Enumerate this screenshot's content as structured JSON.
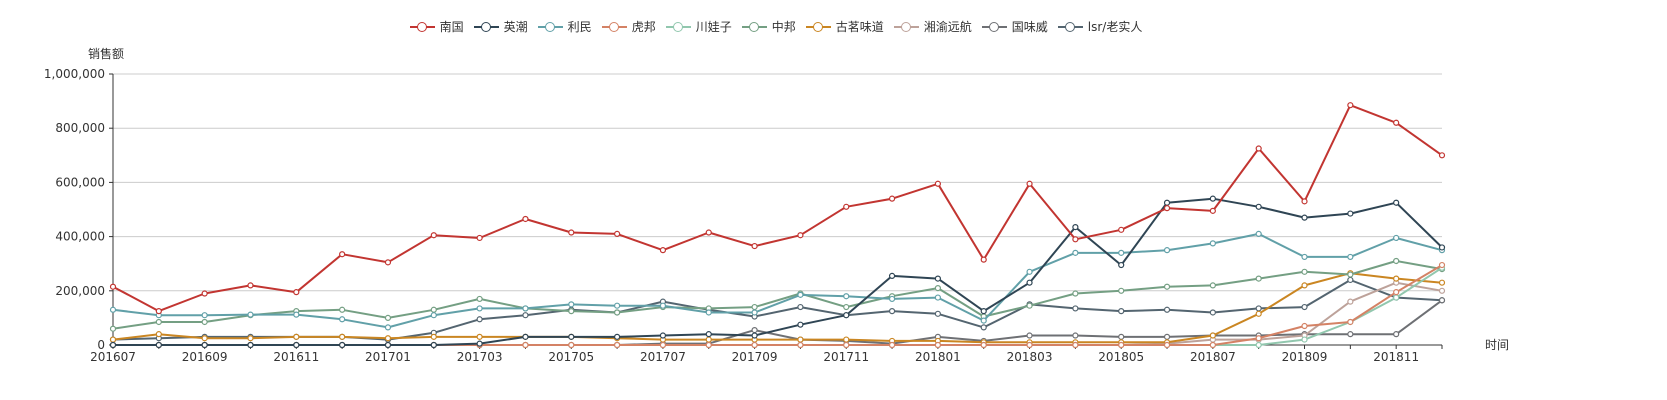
{
  "chart_data": {
    "type": "line",
    "title": "",
    "xlabel": "时间",
    "ylabel": "销售额",
    "ylim": [
      0,
      1000000
    ],
    "y_ticks": [
      "0",
      "200,000",
      "400,000",
      "600,000",
      "800,000",
      "1,000,000"
    ],
    "x_tick_labels": [
      "201607",
      "201609",
      "201611",
      "201701",
      "201703",
      "201705",
      "201707",
      "201709",
      "201711",
      "201801",
      "201803",
      "201805",
      "201807",
      "201809",
      "201811"
    ],
    "grid": true,
    "legend_position": "top",
    "categories": [
      "201607",
      "201608",
      "201609",
      "201610",
      "201611",
      "201612",
      "201701",
      "201702",
      "201703",
      "201704",
      "201705",
      "201706",
      "201707",
      "201708",
      "201709",
      "201710",
      "201711",
      "201712",
      "201801",
      "201802",
      "201803",
      "201804",
      "201805",
      "201806",
      "201807",
      "201808",
      "201809",
      "201810",
      "201811",
      "201812"
    ],
    "series": [
      {
        "name": "南国",
        "color": "#c23531",
        "values": [
          215000,
          125000,
          190000,
          220000,
          195000,
          335000,
          305000,
          405000,
          395000,
          465000,
          415000,
          410000,
          350000,
          415000,
          365000,
          405000,
          510000,
          540000,
          595000,
          315000,
          595000,
          390000,
          425000,
          505000,
          495000,
          725000,
          530000,
          885000,
          820000,
          700000
        ]
      },
      {
        "name": "英潮",
        "color": "#2f4554",
        "values": [
          0,
          0,
          0,
          0,
          0,
          0,
          0,
          0,
          5000,
          30000,
          30000,
          30000,
          35000,
          40000,
          35000,
          75000,
          110000,
          255000,
          245000,
          125000,
          230000,
          435000,
          295000,
          525000,
          540000,
          510000,
          470000,
          485000,
          525000,
          360000
        ]
      },
      {
        "name": "利民",
        "color": "#61a0a8",
        "values": [
          130000,
          110000,
          110000,
          112000,
          112000,
          95000,
          65000,
          110000,
          135000,
          135000,
          150000,
          145000,
          145000,
          120000,
          120000,
          185000,
          180000,
          170000,
          175000,
          90000,
          270000,
          340000,
          340000,
          350000,
          375000,
          410000,
          325000,
          325000,
          395000,
          350000
        ]
      },
      {
        "name": "虎邦",
        "color": "#d48265",
        "values": [
          0,
          0,
          0,
          0,
          0,
          0,
          0,
          0,
          0,
          0,
          0,
          0,
          0,
          0,
          0,
          0,
          0,
          0,
          0,
          0,
          0,
          0,
          0,
          0,
          0,
          25000,
          70000,
          85000,
          195000,
          295000
        ]
      },
      {
        "name": "川娃子",
        "color": "#91c7ae",
        "values": [
          0,
          0,
          0,
          0,
          0,
          0,
          0,
          0,
          0,
          0,
          0,
          0,
          0,
          0,
          0,
          0,
          0,
          0,
          0,
          0,
          0,
          0,
          0,
          0,
          0,
          0,
          20000,
          85000,
          175000,
          285000
        ]
      },
      {
        "name": "中邦",
        "color": "#749f83",
        "values": [
          60000,
          85000,
          85000,
          110000,
          125000,
          130000,
          100000,
          130000,
          170000,
          135000,
          125000,
          120000,
          140000,
          135000,
          140000,
          190000,
          140000,
          180000,
          210000,
          105000,
          145000,
          190000,
          200000,
          215000,
          220000,
          245000,
          270000,
          260000,
          310000,
          280000
        ]
      },
      {
        "name": "古茗味道",
        "color": "#ca8622",
        "values": [
          20000,
          40000,
          25000,
          25000,
          30000,
          30000,
          25000,
          30000,
          30000,
          30000,
          30000,
          25000,
          20000,
          20000,
          20000,
          20000,
          20000,
          15000,
          15000,
          10000,
          10000,
          10000,
          10000,
          10000,
          35000,
          115000,
          220000,
          265000,
          245000,
          230000
        ]
      },
      {
        "name": "湘渝远航",
        "color": "#bda29a",
        "values": [
          0,
          0,
          0,
          0,
          0,
          0,
          0,
          0,
          0,
          0,
          0,
          0,
          0,
          0,
          0,
          0,
          0,
          0,
          0,
          0,
          0,
          0,
          0,
          5000,
          20000,
          20000,
          35000,
          160000,
          230000,
          200000
        ]
      },
      {
        "name": "国味威",
        "color": "#6e7074",
        "values": [
          0,
          0,
          0,
          0,
          0,
          0,
          0,
          0,
          0,
          0,
          0,
          0,
          5000,
          5000,
          55000,
          20000,
          15000,
          5000,
          30000,
          15000,
          35000,
          35000,
          30000,
          30000,
          35000,
          35000,
          40000,
          40000,
          40000,
          165000
        ]
      },
      {
        "name": "lsr/老实人",
        "color": "#546570",
        "values": [
          20000,
          25000,
          30000,
          30000,
          30000,
          30000,
          20000,
          45000,
          95000,
          110000,
          130000,
          120000,
          160000,
          130000,
          105000,
          140000,
          110000,
          125000,
          115000,
          65000,
          150000,
          135000,
          125000,
          130000,
          120000,
          135000,
          140000,
          240000,
          175000,
          165000
        ]
      }
    ]
  },
  "legend": {
    "items": [
      {
        "label": "南国"
      },
      {
        "label": "英潮"
      },
      {
        "label": "利民"
      },
      {
        "label": "虎邦"
      },
      {
        "label": "川娃子"
      },
      {
        "label": "中邦"
      },
      {
        "label": "古茗味道"
      },
      {
        "label": "湘渝远航"
      },
      {
        "label": "国味威"
      },
      {
        "label": "lsr/老实人"
      }
    ]
  },
  "axes": {
    "y_name": "销售额",
    "x_name": "时间"
  }
}
